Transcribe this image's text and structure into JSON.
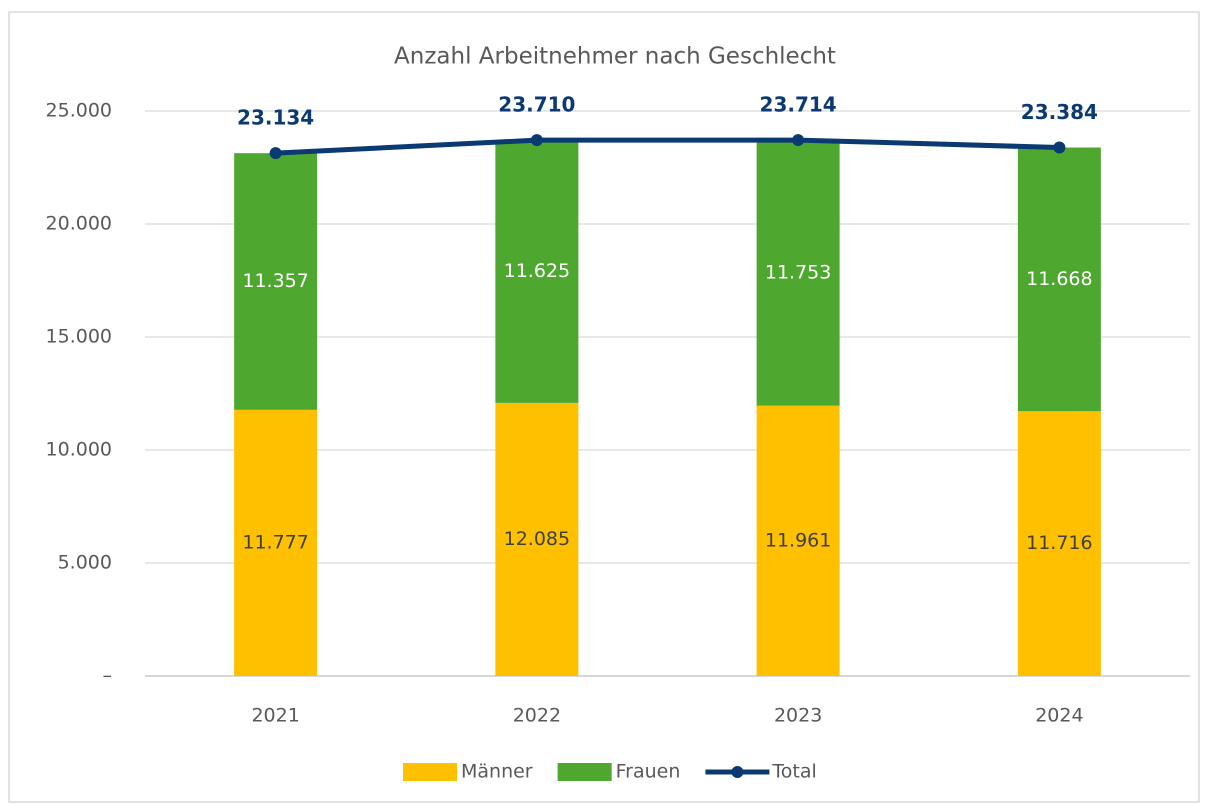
{
  "chart_data": {
    "type": "bar",
    "stacked": true,
    "title": "Anzahl Arbeitnehmer nach Geschlecht",
    "categories": [
      "2021",
      "2022",
      "2023",
      "2024"
    ],
    "series": [
      {
        "name": "Männer",
        "color": "#ffc000",
        "values": [
          11777,
          12085,
          11961,
          11716
        ],
        "value_labels": [
          "11.777",
          "12.085",
          "11.961",
          "11.716"
        ]
      },
      {
        "name": "Frauen",
        "color": "#4ea72e",
        "values": [
          11357,
          11625,
          11753,
          11668
        ],
        "value_labels": [
          "11.357",
          "11.625",
          "11.753",
          "11.668"
        ]
      },
      {
        "name": "Total",
        "type": "line",
        "color": "#0b3a73",
        "values": [
          23134,
          23710,
          23714,
          23384
        ],
        "value_labels": [
          "23.134",
          "23.710",
          "23.714",
          "23.384"
        ]
      }
    ],
    "ylim": [
      0,
      25000
    ],
    "yticks": [
      {
        "value": 0,
        "label": "–"
      },
      {
        "value": 5000,
        "label": "5.000"
      },
      {
        "value": 10000,
        "label": "10.000"
      },
      {
        "value": 15000,
        "label": "15.000"
      },
      {
        "value": 20000,
        "label": "20.000"
      },
      {
        "value": 25000,
        "label": "25.000"
      }
    ],
    "grid": true,
    "legend": "bottom"
  }
}
